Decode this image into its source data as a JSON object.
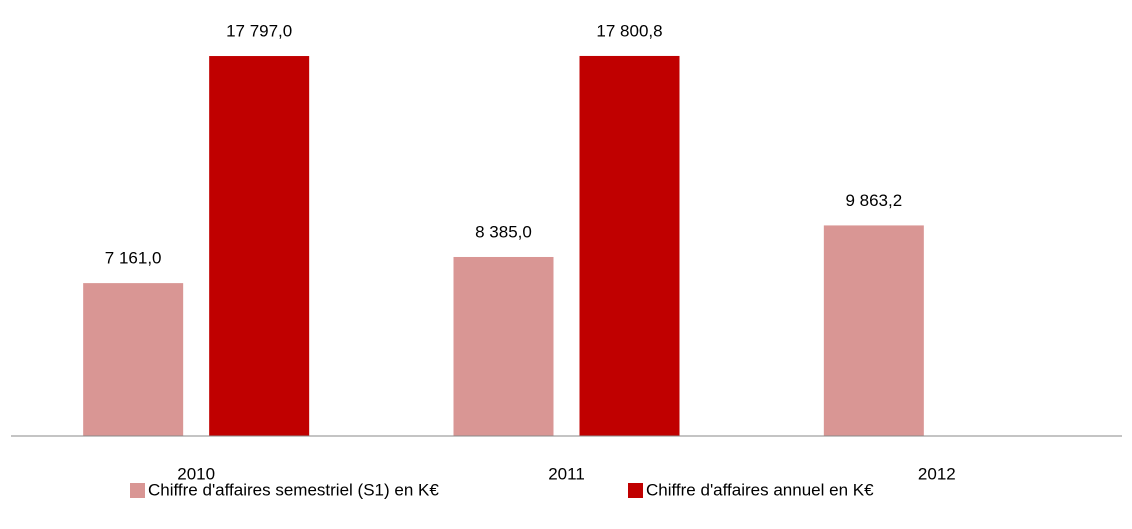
{
  "chart_data": {
    "type": "bar",
    "categories": [
      "2010",
      "2011",
      "2012"
    ],
    "series": [
      {
        "name": "Chiffre d'affaires semestriel (S1) en K€",
        "color": "#d99694",
        "values": [
          7161.0,
          8385.0,
          9863.2
        ],
        "value_labels": [
          "7 161,0",
          "8 385,0",
          "9 863,2"
        ]
      },
      {
        "name": "Chiffre d'affaires annuel en K€",
        "color": "#c00000",
        "values": [
          17797.0,
          17800.8,
          null
        ],
        "value_labels": [
          "17 797,0",
          "17 800,8",
          null
        ]
      }
    ],
    "ylim": [
      0,
      20000
    ]
  }
}
